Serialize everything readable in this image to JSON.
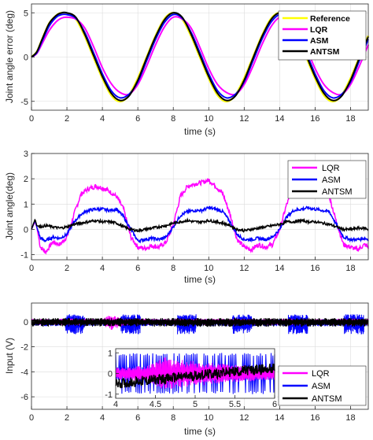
{
  "colors": {
    "Reference": "#ffff00",
    "LQR": "#ff00ff",
    "ASM": "#0000ff",
    "ANTSM": "#000000",
    "axes": "#262626",
    "grid": "#dcdcdc"
  },
  "chart_data": [
    {
      "type": "line",
      "xlabel": "time (s)",
      "ylabel": "Joint angle error (deg)",
      "xlim": [
        0,
        19
      ],
      "ylim": [
        -6,
        6
      ],
      "xticks": [
        0,
        2,
        4,
        6,
        8,
        10,
        12,
        14,
        16,
        18
      ],
      "yticks": [
        -5,
        0,
        5
      ],
      "grid": true,
      "legend": "top-right",
      "series": [
        {
          "name": "Reference",
          "x": [
            0,
            0.3,
            0.6,
            1.0,
            1.4,
            1.7,
            2.0,
            2.5,
            3.0,
            3.5,
            4.0,
            4.5,
            5.0,
            5.5,
            6.0,
            6.5,
            7.0,
            7.5,
            8.0,
            8.5,
            9.0,
            9.5,
            10.0,
            10.5,
            11.0,
            11.5,
            12.0,
            12.5,
            13.0,
            13.5,
            14.0,
            14.5,
            15.0,
            15.5,
            16.0,
            16.5,
            17.0,
            17.5,
            18.0,
            18.5,
            19.0
          ],
          "values": [
            0,
            0.6,
            2.0,
            3.8,
            4.7,
            5.0,
            4.9,
            4.3,
            2.4,
            0.0,
            -2.4,
            -4.3,
            -5.0,
            -4.3,
            -2.4,
            0.0,
            2.4,
            4.3,
            5.0,
            4.3,
            2.4,
            0.0,
            -2.4,
            -4.3,
            -5.0,
            -4.3,
            -2.4,
            0.0,
            2.4,
            4.3,
            5.0,
            4.3,
            2.4,
            0.0,
            -2.4,
            -4.3,
            -5.0,
            -4.3,
            -2.4,
            0.0,
            2.4
          ]
        },
        {
          "name": "LQR",
          "x": [
            0,
            0.3,
            0.6,
            1.0,
            1.4,
            1.7,
            2.0,
            2.5,
            3.0,
            3.5,
            4.0,
            4.5,
            5.0,
            5.5,
            6.0,
            6.5,
            7.0,
            7.5,
            8.0,
            8.5,
            9.0,
            9.5,
            10.0,
            10.5,
            11.0,
            11.5,
            12.0,
            12.5,
            13.0,
            13.5,
            14.0,
            14.5,
            15.0,
            15.5,
            16.0,
            16.5,
            17.0,
            17.5,
            18.0,
            18.5,
            19.0
          ],
          "values": [
            0,
            0.4,
            1.5,
            3.0,
            4.0,
            4.4,
            4.5,
            4.3,
            3.3,
            1.2,
            -1.2,
            -3.0,
            -4.0,
            -4.2,
            -3.1,
            -1.0,
            1.4,
            3.4,
            4.5,
            4.3,
            3.3,
            1.1,
            -1.3,
            -3.1,
            -4.0,
            -4.2,
            -3.1,
            -1.0,
            1.4,
            3.4,
            4.5,
            4.3,
            3.3,
            1.1,
            -1.3,
            -3.1,
            -4.0,
            -4.2,
            -3.1,
            -1.0,
            1.4
          ]
        },
        {
          "name": "ASM",
          "x": [
            0,
            0.3,
            0.6,
            1.0,
            1.4,
            1.7,
            2.0,
            2.5,
            3.0,
            3.5,
            4.0,
            4.5,
            5.0,
            5.5,
            6.0,
            6.5,
            7.0,
            7.5,
            8.0,
            8.5,
            9.0,
            9.5,
            10.0,
            10.5,
            11.0,
            11.5,
            12.0,
            12.5,
            13.0,
            13.5,
            14.0,
            14.5,
            15.0,
            15.5,
            16.0,
            16.5,
            17.0,
            17.5,
            18.0,
            18.5,
            19.0
          ],
          "values": [
            0,
            0.5,
            1.8,
            3.5,
            4.5,
            4.8,
            4.8,
            4.4,
            2.8,
            0.5,
            -1.9,
            -3.8,
            -4.6,
            -4.2,
            -2.8,
            -0.4,
            2.0,
            3.9,
            4.8,
            4.4,
            2.8,
            0.5,
            -1.9,
            -3.8,
            -4.6,
            -4.2,
            -2.8,
            -0.4,
            2.0,
            3.9,
            4.8,
            4.4,
            2.8,
            0.5,
            -1.9,
            -3.8,
            -4.6,
            -4.2,
            -2.8,
            -0.4,
            2.0
          ]
        },
        {
          "name": "ANTSM",
          "x": [
            0,
            0.3,
            0.6,
            1.0,
            1.4,
            1.7,
            2.0,
            2.5,
            3.0,
            3.5,
            4.0,
            4.5,
            5.0,
            5.5,
            6.0,
            6.5,
            7.0,
            7.5,
            8.0,
            8.5,
            9.0,
            9.5,
            10.0,
            10.5,
            11.0,
            11.5,
            12.0,
            12.5,
            13.0,
            13.5,
            14.0,
            14.5,
            15.0,
            15.5,
            16.0,
            16.5,
            17.0,
            17.5,
            18.0,
            18.5,
            19.0
          ],
          "values": [
            0,
            0.6,
            2.0,
            3.8,
            4.7,
            5.0,
            5.0,
            4.5,
            2.6,
            0.2,
            -2.2,
            -4.1,
            -4.9,
            -4.4,
            -2.6,
            -0.1,
            2.3,
            4.2,
            5.0,
            4.5,
            2.6,
            0.2,
            -2.2,
            -4.1,
            -4.9,
            -4.4,
            -2.6,
            -0.1,
            2.3,
            4.2,
            5.0,
            4.5,
            2.6,
            0.2,
            -2.2,
            -4.1,
            -4.9,
            -4.4,
            -2.6,
            -0.1,
            2.3
          ]
        }
      ]
    },
    {
      "type": "line",
      "xlabel": "time (s)",
      "ylabel": "Joint angle(deg)",
      "xlim": [
        0,
        19
      ],
      "ylim": [
        -1.2,
        3
      ],
      "xticks": [
        0,
        2,
        4,
        6,
        8,
        10,
        12,
        14,
        16,
        18
      ],
      "yticks": [
        -1,
        0,
        1,
        2,
        3
      ],
      "grid": true,
      "legend": "top-right",
      "series": [
        {
          "name": "LQR",
          "x": [
            0,
            0.2,
            0.3,
            0.5,
            0.8,
            1.2,
            1.6,
            2.0,
            2.4,
            2.8,
            3.2,
            3.6,
            4.0,
            4.4,
            4.8,
            5.2,
            5.6,
            6.0,
            6.4,
            6.8,
            7.2,
            7.6,
            8.0,
            8.4,
            8.8,
            9.2,
            9.6,
            10.0,
            10.4,
            10.8,
            11.2,
            11.6,
            12.0,
            12.4,
            12.8,
            13.2,
            13.6,
            14.0,
            14.4,
            14.8,
            15.2,
            15.6,
            16.0,
            16.4,
            16.8,
            17.2,
            17.6,
            18.0,
            18.4,
            18.8,
            19.0
          ],
          "values": [
            0,
            0.3,
            0.1,
            -0.7,
            -0.9,
            -0.5,
            -0.6,
            -0.3,
            0.6,
            1.4,
            1.6,
            1.7,
            1.65,
            1.5,
            1.3,
            0.8,
            -0.3,
            -0.7,
            -0.75,
            -0.65,
            -0.7,
            -0.5,
            0.2,
            1.3,
            1.7,
            1.8,
            1.85,
            1.95,
            1.7,
            1.4,
            0.6,
            -0.4,
            -0.7,
            -0.8,
            -0.6,
            -0.7,
            -0.6,
            0.0,
            1.0,
            1.6,
            1.75,
            1.8,
            1.7,
            1.5,
            1.3,
            0.3,
            -0.6,
            -0.7,
            -0.8,
            -0.6,
            -0.7
          ]
        },
        {
          "name": "ASM",
          "x": [
            0,
            0.2,
            0.3,
            0.5,
            0.8,
            1.2,
            1.6,
            2.0,
            2.4,
            2.8,
            3.2,
            3.6,
            4.0,
            4.4,
            4.8,
            5.2,
            5.6,
            6.0,
            6.4,
            6.8,
            7.2,
            7.6,
            8.0,
            8.4,
            8.8,
            9.2,
            9.6,
            10.0,
            10.4,
            10.8,
            11.2,
            11.6,
            12.0,
            12.4,
            12.8,
            13.2,
            13.6,
            14.0,
            14.4,
            14.8,
            15.2,
            15.6,
            16.0,
            16.4,
            16.8,
            17.2,
            17.6,
            18.0,
            18.4,
            18.8,
            19.0
          ],
          "values": [
            0,
            0.35,
            0.1,
            -0.35,
            -0.45,
            -0.3,
            -0.35,
            -0.2,
            0.3,
            0.6,
            0.75,
            0.8,
            0.8,
            0.75,
            0.8,
            0.5,
            0.0,
            -0.45,
            -0.4,
            -0.35,
            -0.4,
            -0.3,
            0.1,
            0.55,
            0.7,
            0.75,
            0.75,
            0.85,
            0.8,
            0.7,
            0.3,
            -0.2,
            -0.4,
            -0.4,
            -0.35,
            -0.4,
            -0.3,
            0.0,
            0.5,
            0.75,
            0.8,
            0.85,
            0.8,
            0.75,
            0.7,
            0.2,
            -0.3,
            -0.4,
            -0.4,
            -0.35,
            -0.4
          ]
        },
        {
          "name": "ANTSM",
          "x": [
            0,
            0.2,
            0.3,
            0.5,
            0.8,
            1.2,
            1.6,
            2.0,
            2.4,
            2.8,
            3.2,
            3.6,
            4.0,
            4.4,
            4.8,
            5.2,
            5.6,
            6.0,
            6.4,
            6.8,
            7.2,
            7.6,
            8.0,
            8.4,
            8.8,
            9.2,
            9.6,
            10.0,
            10.4,
            10.8,
            11.2,
            11.6,
            12.0,
            12.4,
            12.8,
            13.2,
            13.6,
            14.0,
            14.4,
            14.8,
            15.2,
            15.6,
            16.0,
            16.4,
            16.8,
            17.2,
            17.6,
            18.0,
            18.4,
            18.8,
            19.0
          ],
          "values": [
            0,
            0.4,
            0.15,
            0.1,
            0.15,
            0.1,
            0.05,
            0.1,
            0.2,
            0.25,
            0.3,
            0.35,
            0.3,
            0.3,
            0.25,
            0.1,
            0.0,
            -0.05,
            0.0,
            0.05,
            0.1,
            0.15,
            0.25,
            0.3,
            0.35,
            0.3,
            0.3,
            0.35,
            0.3,
            0.25,
            0.15,
            0.0,
            -0.05,
            0.0,
            0.05,
            0.1,
            0.15,
            0.2,
            0.3,
            0.3,
            0.35,
            0.3,
            0.3,
            0.25,
            0.2,
            0.1,
            0.0,
            0.0,
            0.05,
            0.05,
            0.0
          ]
        }
      ]
    },
    {
      "type": "line",
      "xlabel": "time (s)",
      "ylabel": "Input (V)",
      "xlim": [
        0,
        19
      ],
      "ylim": [
        -7,
        1.5
      ],
      "xticks": [
        0,
        2,
        4,
        6,
        8,
        10,
        12,
        14,
        16,
        18
      ],
      "yticks": [
        -6,
        -4,
        -2,
        0
      ],
      "grid": true,
      "legend": "bottom-right",
      "series": [
        {
          "name": "LQR",
          "envelope": "chattering",
          "x": [
            0,
            4,
            4.5,
            5,
            5.5,
            6,
            19
          ],
          "hi": [
            0.25,
            0.25,
            0.6,
            0.3,
            0.25,
            0.25,
            0.25
          ],
          "lo": [
            -0.25,
            -0.25,
            -0.7,
            -0.4,
            -0.25,
            -0.25,
            -0.25
          ]
        },
        {
          "name": "ASM",
          "envelope": "chattering",
          "x": [
            0,
            19
          ],
          "hi": [
            0.6,
            0.6
          ],
          "lo": [
            -1.0,
            -1.0
          ]
        },
        {
          "name": "ANTSM",
          "envelope": "chattering",
          "x": [
            0,
            19
          ],
          "hi": [
            0.3,
            0.3
          ],
          "lo": [
            -0.4,
            -0.4
          ]
        }
      ]
    },
    {
      "type": "line",
      "inset_of": 3,
      "xlim": [
        4,
        6
      ],
      "ylim": [
        -1.2,
        1.2
      ],
      "xticks": [
        4,
        4.5,
        5,
        5.5,
        6
      ],
      "xtick_labels": [
        "4",
        "4.5",
        "5",
        "5.5",
        "6"
      ],
      "yticks": [
        -1,
        0,
        1
      ],
      "series": [
        {
          "name": "LQR",
          "x": [
            4,
            4.4,
            4.6,
            4.8,
            5.0,
            5.3,
            5.6,
            6.0
          ],
          "hi": [
            0.3,
            0.4,
            0.8,
            0.7,
            0.6,
            0.5,
            0.4,
            0.3
          ],
          "lo": [
            -0.3,
            -0.4,
            -0.8,
            -0.7,
            -0.6,
            -0.5,
            -0.4,
            -0.3
          ]
        },
        {
          "name": "ASM",
          "x": [
            4,
            6
          ],
          "hi": [
            1.0,
            1.0
          ],
          "lo": [
            -1.0,
            -1.0
          ]
        },
        {
          "name": "ANTSM",
          "x": [
            4,
            4.5,
            5.0,
            5.5,
            6.0
          ],
          "values": [
            -0.5,
            -0.3,
            -0.1,
            0.1,
            0.25
          ]
        }
      ]
    }
  ]
}
